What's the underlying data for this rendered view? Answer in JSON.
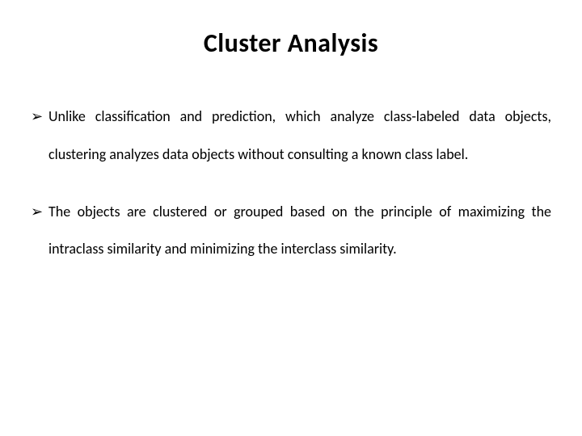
{
  "slide": {
    "title": "Cluster Analysis",
    "bullets": [
      {
        "marker": "➢",
        "text": "Unlike classification and prediction, which analyze class-labeled data objects, clustering analyzes data objects without consulting a known class label."
      },
      {
        "marker": "➢",
        "text": "The objects are clustered or grouped based on the principle of maximizing the intraclass similarity and minimizing the interclass similarity."
      }
    ],
    "styling": {
      "background_color": "#ffffff",
      "text_color": "#000000",
      "title_fontsize": 32,
      "title_fontweight": 700,
      "body_fontsize": 18,
      "body_lineheight": 2.6,
      "bullet_marker_color": "#000000",
      "font_family": "Calibri"
    }
  }
}
